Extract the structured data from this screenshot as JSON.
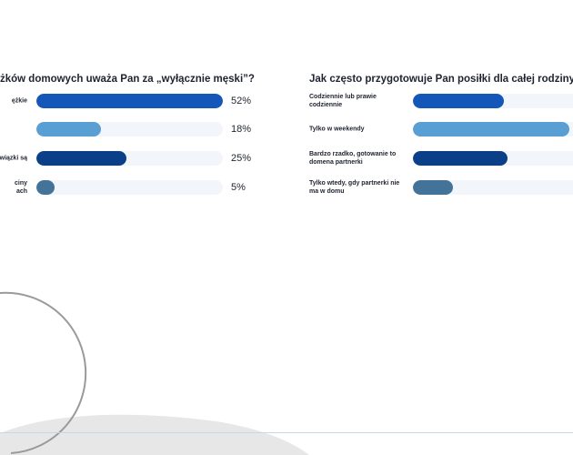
{
  "colors": {
    "c1": "#1457b8",
    "c2": "#5a9fd4",
    "c3": "#0b3f88",
    "c4": "#44739a",
    "track": "#f2f5fa"
  },
  "chart_data": [
    {
      "type": "bar",
      "orientation": "horizontal",
      "title": "żków domowych uważa Pan za „wyłącznie męski”?",
      "categories": [
        "ężkie",
        "",
        "wiązki są",
        "ciny\nach"
      ],
      "values": [
        52,
        18,
        25,
        5
      ],
      "value_labels": [
        "52%",
        "18%",
        "25%",
        "5%"
      ],
      "bar_colors": [
        "#1457b8",
        "#5a9fd4",
        "#0b3f88",
        "#44739a"
      ],
      "xlim": [
        0,
        52
      ],
      "unit": "%"
    },
    {
      "type": "bar",
      "orientation": "horizontal",
      "title": "Jak często przygotowuje Pan posiłki dla całej rodziny?",
      "categories": [
        "Codziennie lub prawie codziennie",
        "Tylko w weekendy",
        "Bardzo rzadko, gotowanie to domena partnerki",
        "Tylko wtedy, gdy partnerki nie ma w domu"
      ],
      "values": [
        25,
        43,
        26,
        11
      ],
      "bar_colors": [
        "#1457b8",
        "#5a9fd4",
        "#0b3f88",
        "#44739a"
      ],
      "xlim": [
        0,
        50
      ],
      "unit": "%"
    }
  ]
}
